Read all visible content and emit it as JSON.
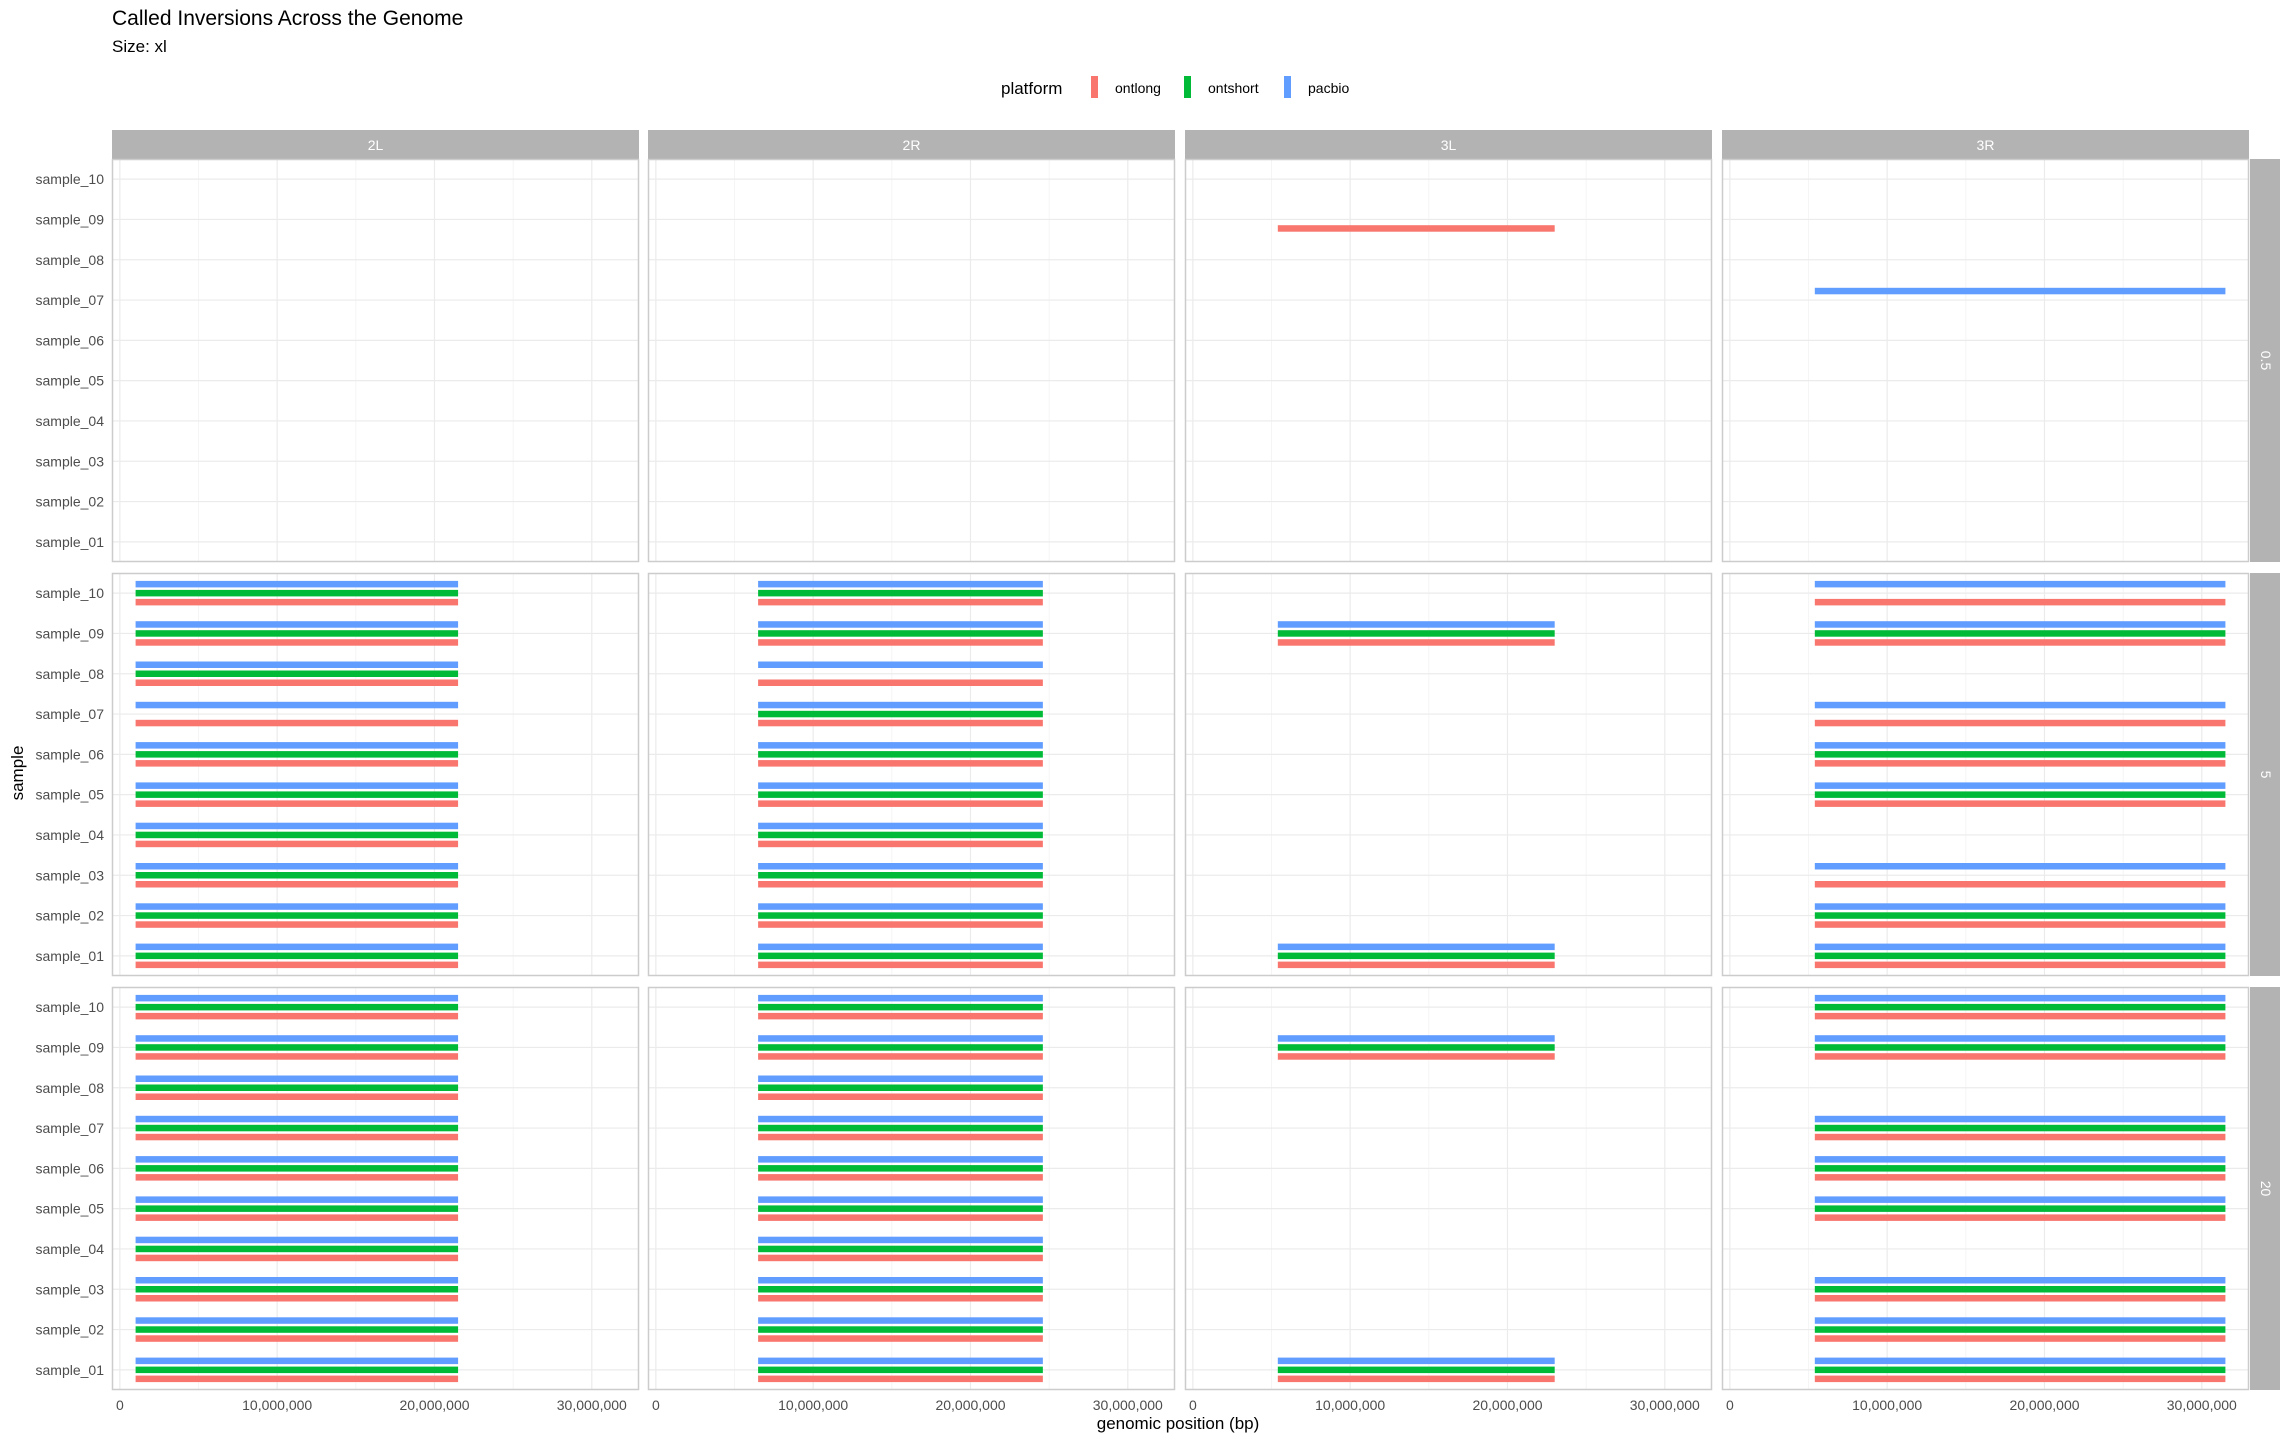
{
  "chart_data": {
    "type": "bar",
    "title": "Called Inversions Across the Genome",
    "subtitle": "Size: xl",
    "xlabel": "genomic position (bp)",
    "ylabel": "sample",
    "xlim": [
      -500000,
      33000000
    ],
    "x_ticks": [
      0,
      10000000,
      20000000,
      30000000
    ],
    "x_tick_labels": [
      "0",
      "10,000,000",
      "20,000,000",
      "30,000,000"
    ],
    "grid": true,
    "legend": {
      "title": "platform",
      "position": "top",
      "entries": [
        {
          "name": "ontlong",
          "color": "#F8766D"
        },
        {
          "name": "ontshort",
          "color": "#00BA38"
        },
        {
          "name": "pacbio",
          "color": "#619CFF"
        }
      ]
    },
    "columns": [
      "2L",
      "2R",
      "3L",
      "3R"
    ],
    "rows": [
      "0.5",
      "5",
      "20"
    ],
    "samples": [
      "sample_01",
      "sample_02",
      "sample_03",
      "sample_04",
      "sample_05",
      "sample_06",
      "sample_07",
      "sample_08",
      "sample_09",
      "sample_10"
    ],
    "inversions": {
      "2L": {
        "start": 1000000,
        "end": 21500000
      },
      "2R": {
        "start": 6500000,
        "end": 24600000
      },
      "3L": {
        "start": 5400000,
        "end": 23000000
      },
      "3R": {
        "start": 5400000,
        "end": 31500000
      }
    },
    "calls": [
      {
        "row": "0.5",
        "arm": "3L",
        "sample": "sample_09",
        "platforms": [
          "ontlong"
        ]
      },
      {
        "row": "0.5",
        "arm": "3R",
        "sample": "sample_07",
        "platforms": [
          "pacbio"
        ]
      },
      {
        "row": "5",
        "arm": "2L",
        "sample": "sample_10",
        "platforms": [
          "ontlong",
          "ontshort",
          "pacbio"
        ]
      },
      {
        "row": "5",
        "arm": "2L",
        "sample": "sample_09",
        "platforms": [
          "ontlong",
          "ontshort",
          "pacbio"
        ]
      },
      {
        "row": "5",
        "arm": "2L",
        "sample": "sample_08",
        "platforms": [
          "ontlong",
          "ontshort",
          "pacbio"
        ]
      },
      {
        "row": "5",
        "arm": "2L",
        "sample": "sample_07",
        "platforms": [
          "ontlong",
          "pacbio"
        ]
      },
      {
        "row": "5",
        "arm": "2L",
        "sample": "sample_06",
        "platforms": [
          "ontlong",
          "ontshort",
          "pacbio"
        ]
      },
      {
        "row": "5",
        "arm": "2L",
        "sample": "sample_05",
        "platforms": [
          "ontlong",
          "ontshort",
          "pacbio"
        ]
      },
      {
        "row": "5",
        "arm": "2L",
        "sample": "sample_04",
        "platforms": [
          "ontlong",
          "ontshort",
          "pacbio"
        ]
      },
      {
        "row": "5",
        "arm": "2L",
        "sample": "sample_03",
        "platforms": [
          "ontlong",
          "ontshort",
          "pacbio"
        ]
      },
      {
        "row": "5",
        "arm": "2L",
        "sample": "sample_02",
        "platforms": [
          "ontlong",
          "ontshort",
          "pacbio"
        ]
      },
      {
        "row": "5",
        "arm": "2L",
        "sample": "sample_01",
        "platforms": [
          "ontlong",
          "ontshort",
          "pacbio"
        ]
      },
      {
        "row": "5",
        "arm": "2R",
        "sample": "sample_10",
        "platforms": [
          "ontlong",
          "ontshort",
          "pacbio"
        ]
      },
      {
        "row": "5",
        "arm": "2R",
        "sample": "sample_09",
        "platforms": [
          "ontlong",
          "ontshort",
          "pacbio"
        ]
      },
      {
        "row": "5",
        "arm": "2R",
        "sample": "sample_08",
        "platforms": [
          "ontlong",
          "pacbio"
        ]
      },
      {
        "row": "5",
        "arm": "2R",
        "sample": "sample_07",
        "platforms": [
          "ontlong",
          "ontshort",
          "pacbio"
        ]
      },
      {
        "row": "5",
        "arm": "2R",
        "sample": "sample_06",
        "platforms": [
          "ontlong",
          "ontshort",
          "pacbio"
        ]
      },
      {
        "row": "5",
        "arm": "2R",
        "sample": "sample_05",
        "platforms": [
          "ontlong",
          "ontshort",
          "pacbio"
        ]
      },
      {
        "row": "5",
        "arm": "2R",
        "sample": "sample_04",
        "platforms": [
          "ontlong",
          "ontshort",
          "pacbio"
        ]
      },
      {
        "row": "5",
        "arm": "2R",
        "sample": "sample_03",
        "platforms": [
          "ontlong",
          "ontshort",
          "pacbio"
        ]
      },
      {
        "row": "5",
        "arm": "2R",
        "sample": "sample_02",
        "platforms": [
          "ontlong",
          "ontshort",
          "pacbio"
        ]
      },
      {
        "row": "5",
        "arm": "2R",
        "sample": "sample_01",
        "platforms": [
          "ontlong",
          "ontshort",
          "pacbio"
        ]
      },
      {
        "row": "5",
        "arm": "3L",
        "sample": "sample_09",
        "platforms": [
          "ontlong",
          "ontshort",
          "pacbio"
        ]
      },
      {
        "row": "5",
        "arm": "3L",
        "sample": "sample_01",
        "platforms": [
          "ontlong",
          "ontshort",
          "pacbio"
        ]
      },
      {
        "row": "5",
        "arm": "3R",
        "sample": "sample_10",
        "platforms": [
          "ontlong",
          "pacbio"
        ]
      },
      {
        "row": "5",
        "arm": "3R",
        "sample": "sample_09",
        "platforms": [
          "ontlong",
          "ontshort",
          "pacbio"
        ]
      },
      {
        "row": "5",
        "arm": "3R",
        "sample": "sample_07",
        "platforms": [
          "ontlong",
          "pacbio"
        ]
      },
      {
        "row": "5",
        "arm": "3R",
        "sample": "sample_06",
        "platforms": [
          "ontlong",
          "ontshort",
          "pacbio"
        ]
      },
      {
        "row": "5",
        "arm": "3R",
        "sample": "sample_05",
        "platforms": [
          "ontlong",
          "ontshort",
          "pacbio"
        ]
      },
      {
        "row": "5",
        "arm": "3R",
        "sample": "sample_03",
        "platforms": [
          "ontlong",
          "pacbio"
        ]
      },
      {
        "row": "5",
        "arm": "3R",
        "sample": "sample_02",
        "platforms": [
          "ontlong",
          "ontshort",
          "pacbio"
        ]
      },
      {
        "row": "5",
        "arm": "3R",
        "sample": "sample_01",
        "platforms": [
          "ontlong",
          "ontshort",
          "pacbio"
        ]
      },
      {
        "row": "20",
        "arm": "2L",
        "sample": "sample_10",
        "platforms": [
          "ontlong",
          "ontshort",
          "pacbio"
        ]
      },
      {
        "row": "20",
        "arm": "2L",
        "sample": "sample_09",
        "platforms": [
          "ontlong",
          "ontshort",
          "pacbio"
        ]
      },
      {
        "row": "20",
        "arm": "2L",
        "sample": "sample_08",
        "platforms": [
          "ontlong",
          "ontshort",
          "pacbio"
        ]
      },
      {
        "row": "20",
        "arm": "2L",
        "sample": "sample_07",
        "platforms": [
          "ontlong",
          "ontshort",
          "pacbio"
        ]
      },
      {
        "row": "20",
        "arm": "2L",
        "sample": "sample_06",
        "platforms": [
          "ontlong",
          "ontshort",
          "pacbio"
        ]
      },
      {
        "row": "20",
        "arm": "2L",
        "sample": "sample_05",
        "platforms": [
          "ontlong",
          "ontshort",
          "pacbio"
        ]
      },
      {
        "row": "20",
        "arm": "2L",
        "sample": "sample_04",
        "platforms": [
          "ontlong",
          "ontshort",
          "pacbio"
        ]
      },
      {
        "row": "20",
        "arm": "2L",
        "sample": "sample_03",
        "platforms": [
          "ontlong",
          "ontshort",
          "pacbio"
        ]
      },
      {
        "row": "20",
        "arm": "2L",
        "sample": "sample_02",
        "platforms": [
          "ontlong",
          "ontshort",
          "pacbio"
        ]
      },
      {
        "row": "20",
        "arm": "2L",
        "sample": "sample_01",
        "platforms": [
          "ontlong",
          "ontshort",
          "pacbio"
        ]
      },
      {
        "row": "20",
        "arm": "2R",
        "sample": "sample_10",
        "platforms": [
          "ontlong",
          "ontshort",
          "pacbio"
        ]
      },
      {
        "row": "20",
        "arm": "2R",
        "sample": "sample_09",
        "platforms": [
          "ontlong",
          "ontshort",
          "pacbio"
        ]
      },
      {
        "row": "20",
        "arm": "2R",
        "sample": "sample_08",
        "platforms": [
          "ontlong",
          "ontshort",
          "pacbio"
        ]
      },
      {
        "row": "20",
        "arm": "2R",
        "sample": "sample_07",
        "platforms": [
          "ontlong",
          "ontshort",
          "pacbio"
        ]
      },
      {
        "row": "20",
        "arm": "2R",
        "sample": "sample_06",
        "platforms": [
          "ontlong",
          "ontshort",
          "pacbio"
        ]
      },
      {
        "row": "20",
        "arm": "2R",
        "sample": "sample_05",
        "platforms": [
          "ontlong",
          "ontshort",
          "pacbio"
        ]
      },
      {
        "row": "20",
        "arm": "2R",
        "sample": "sample_04",
        "platforms": [
          "ontlong",
          "ontshort",
          "pacbio"
        ]
      },
      {
        "row": "20",
        "arm": "2R",
        "sample": "sample_03",
        "platforms": [
          "ontlong",
          "ontshort",
          "pacbio"
        ]
      },
      {
        "row": "20",
        "arm": "2R",
        "sample": "sample_02",
        "platforms": [
          "ontlong",
          "ontshort",
          "pacbio"
        ]
      },
      {
        "row": "20",
        "arm": "2R",
        "sample": "sample_01",
        "platforms": [
          "ontlong",
          "ontshort",
          "pacbio"
        ]
      },
      {
        "row": "20",
        "arm": "3L",
        "sample": "sample_09",
        "platforms": [
          "ontlong",
          "ontshort",
          "pacbio"
        ]
      },
      {
        "row": "20",
        "arm": "3L",
        "sample": "sample_01",
        "platforms": [
          "ontlong",
          "ontshort",
          "pacbio"
        ]
      },
      {
        "row": "20",
        "arm": "3R",
        "sample": "sample_10",
        "platforms": [
          "ontlong",
          "ontshort",
          "pacbio"
        ]
      },
      {
        "row": "20",
        "arm": "3R",
        "sample": "sample_09",
        "platforms": [
          "ontlong",
          "ontshort",
          "pacbio"
        ]
      },
      {
        "row": "20",
        "arm": "3R",
        "sample": "sample_07",
        "platforms": [
          "ontlong",
          "ontshort",
          "pacbio"
        ]
      },
      {
        "row": "20",
        "arm": "3R",
        "sample": "sample_06",
        "platforms": [
          "ontlong",
          "ontshort",
          "pacbio"
        ]
      },
      {
        "row": "20",
        "arm": "3R",
        "sample": "sample_05",
        "platforms": [
          "ontlong",
          "ontshort",
          "pacbio"
        ]
      },
      {
        "row": "20",
        "arm": "3R",
        "sample": "sample_03",
        "platforms": [
          "ontlong",
          "ontshort",
          "pacbio"
        ]
      },
      {
        "row": "20",
        "arm": "3R",
        "sample": "sample_02",
        "platforms": [
          "ontlong",
          "ontshort",
          "pacbio"
        ]
      },
      {
        "row": "20",
        "arm": "3R",
        "sample": "sample_01",
        "platforms": [
          "ontlong",
          "ontshort",
          "pacbio"
        ]
      }
    ],
    "colors": {
      "strip_fill": "#b3b3b3",
      "strip_text": "#ffffff",
      "panel_border": "#cccccc",
      "grid_major": "#ebebeb",
      "grid_minor": "#f5f5f5",
      "axis_text": "#4d4d4d"
    }
  }
}
